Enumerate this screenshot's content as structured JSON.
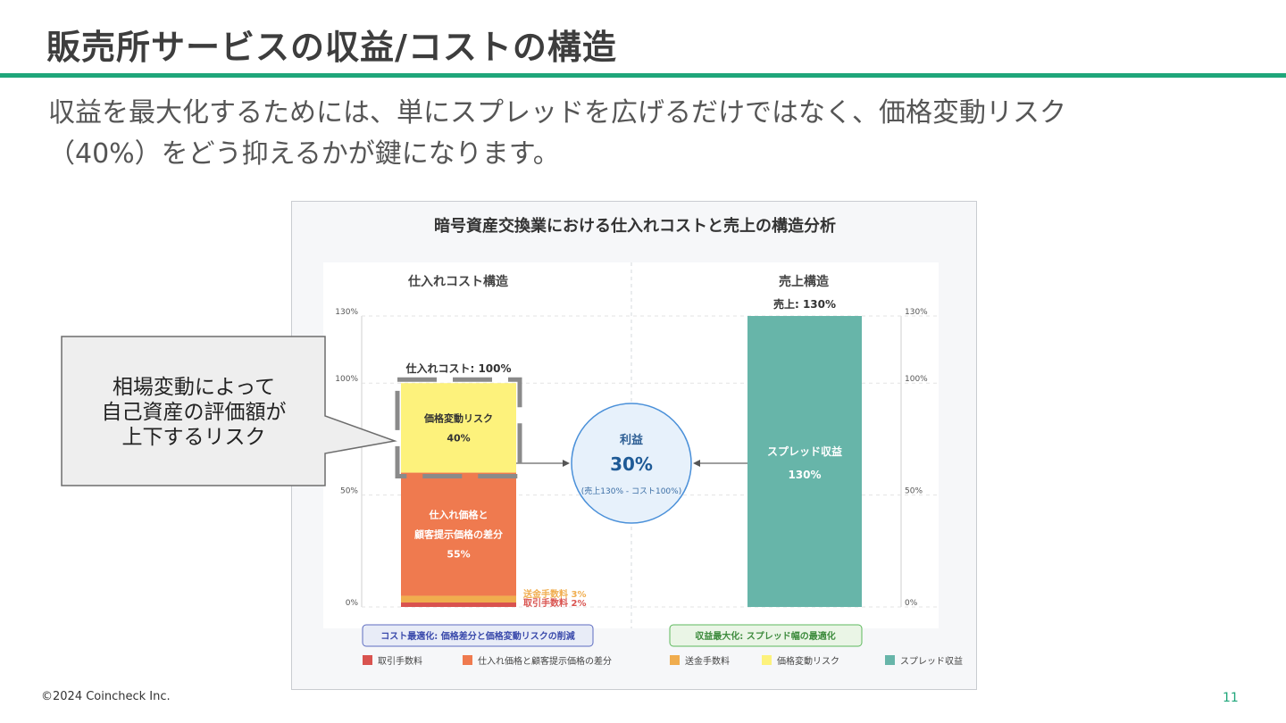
{
  "slide": {
    "title": "販売所サービスの収益/コストの構造",
    "lead_lines": [
      "収益を最大化するためには、単にスプレッドを広げるだけではなく、価格変動リスク",
      "（40%）をどう抑えるかが鍵になります。"
    ],
    "callout_lines": [
      "相場変動によって",
      "自己資産の評価額が",
      "上下するリスク"
    ],
    "footer": "©2024 Coincheck Inc.",
    "page_number": "11",
    "accent_color": "#1fa67a"
  },
  "chart_data": {
    "type": "bar",
    "title": "暗号資産交換業における仕入れコストと売上の構造分析",
    "ylim": [
      0,
      130
    ],
    "ticks": [
      {
        "value": 130,
        "label": "130%"
      },
      {
        "value": 100,
        "label": "100%"
      },
      {
        "value": 50,
        "label": "50%"
      },
      {
        "value": 0,
        "label": "0%"
      }
    ],
    "left_panel": {
      "heading": "仕入れコスト構造",
      "total_label": "仕入れコスト: 100%",
      "segments": [
        {
          "name": "取引手数料",
          "value": 2,
          "color": "#d9534f",
          "label": "取引手数料 2%",
          "label_color": "#d9534f"
        },
        {
          "name": "送金手数料",
          "value": 3,
          "color": "#f0ad4e",
          "label": "送金手数料 3%",
          "label_color": "#f0ad4e"
        },
        {
          "name": "仕入れ価格と顧客提示価格の差分",
          "value": 55,
          "color": "#ef7a4f",
          "inner_lines": [
            "仕入れ価格と",
            "顧客提示価格の差分",
            "55%"
          ]
        },
        {
          "name": "価格変動リスク",
          "value": 40,
          "color": "#fdf27c",
          "inner_lines": [
            "価格変動リスク",
            "40%"
          ]
        }
      ]
    },
    "right_panel": {
      "heading": "売上構造",
      "total_label": "売上: 130%",
      "segments": [
        {
          "name": "スプレッド収益",
          "value": 130,
          "color": "#67b5a9",
          "inner_lines": [
            "スプレッド収益",
            "130%"
          ]
        }
      ]
    },
    "profit": {
      "label": "利益",
      "value_label": "30%",
      "formula": "(売上130% - コスト100%)"
    },
    "strategy_left": "コスト最適化: 価格差分と価格変動リスクの削減",
    "strategy_right": "収益最大化: スプレッド幅の最適化",
    "legend": [
      {
        "name": "取引手数料",
        "color": "#d9534f"
      },
      {
        "name": "仕入れ価格と顧客提示価格の差分",
        "color": "#ef7a4f"
      },
      {
        "name": "送金手数料",
        "color": "#f0ad4e"
      },
      {
        "name": "価格変動リスク",
        "color": "#fdf27c"
      },
      {
        "name": "スプレッド収益",
        "color": "#67b5a9"
      }
    ]
  }
}
